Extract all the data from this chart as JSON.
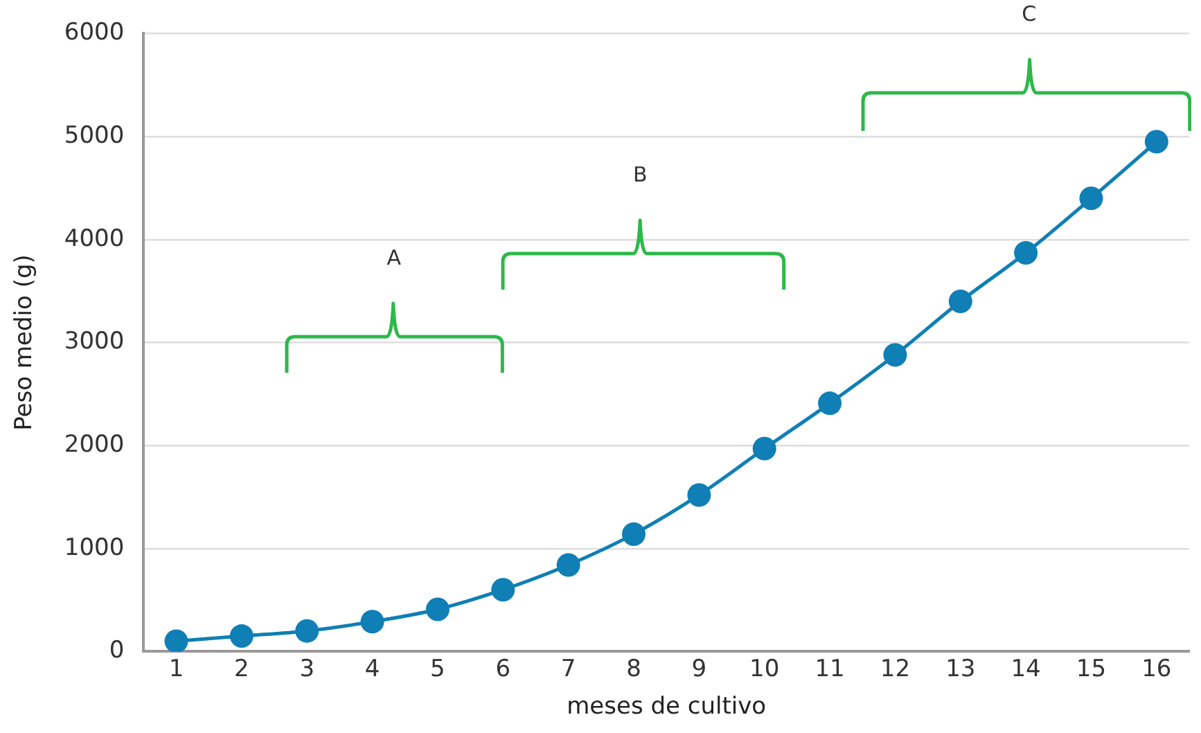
{
  "chart_data": {
    "type": "line",
    "xlabel": "meses de cultivo",
    "ylabel": "Peso medio (g)",
    "x": [
      1,
      2,
      3,
      4,
      5,
      6,
      7,
      8,
      9,
      10,
      11,
      12,
      13,
      14,
      15,
      16
    ],
    "series": [
      {
        "color": "#0f7fb5",
        "values": [
          100,
          150,
          200,
          290,
          410,
          600,
          840,
          1140,
          1520,
          1970,
          2410,
          2880,
          3400,
          3870,
          4400,
          4950
        ]
      }
    ],
    "xlim": [
      0.5,
      16.5
    ],
    "xticks": [
      1,
      2,
      3,
      4,
      5,
      6,
      7,
      8,
      9,
      10,
      11,
      12,
      13,
      14,
      15,
      16
    ],
    "ylim": [
      0,
      6000
    ],
    "yticks": [
      0,
      1000,
      2000,
      3000,
      4000,
      5000,
      6000
    ],
    "grid": "y",
    "marker": "circle",
    "line_style": "solid",
    "legend": false,
    "annotations": [
      "A",
      "B",
      "C"
    ]
  }
}
